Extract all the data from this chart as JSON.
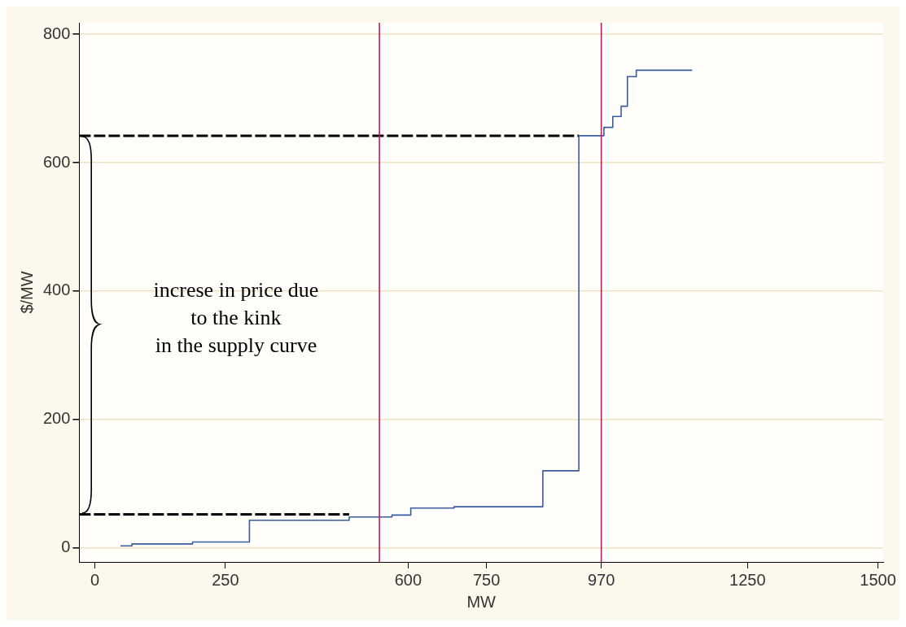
{
  "chart_data": {
    "type": "step",
    "xlabel": "MW",
    "ylabel": "$/MW",
    "xlim": [
      -30,
      1510
    ],
    "ylim": [
      -22,
      818
    ],
    "xticks": [
      0,
      250,
      600,
      750,
      970,
      1250,
      1500
    ],
    "yticks": [
      0,
      200,
      400,
      600,
      800
    ],
    "grid": "y",
    "legend": false,
    "series": [
      {
        "type": "step",
        "color": "#3a5ba0",
        "x": [
          49,
          71,
          187,
          296,
          487,
          569,
          605,
          688,
          858,
          927,
          975,
          992,
          1008,
          1020,
          1037,
          1144
        ],
        "values": [
          3,
          6,
          9,
          43,
          48,
          51,
          62,
          64,
          120,
          642,
          655,
          672,
          688,
          734,
          744,
          744
        ]
      },
      {
        "type": "line",
        "color": "#000000",
        "line_style": "dashed",
        "x": [
          -30,
          927
        ],
        "values": [
          642,
          642
        ]
      },
      {
        "type": "line",
        "color": "#000000",
        "line_style": "dashed",
        "x": [
          -30,
          487
        ],
        "values": [
          52,
          52
        ]
      }
    ],
    "ref_lines": [
      {
        "axis": "x",
        "value": 545,
        "color": "#d1145a"
      },
      {
        "axis": "x",
        "value": 970,
        "color": "#d1145a"
      }
    ],
    "annotations": [
      "increse in price due\nto the kink\nin the supply curve"
    ]
  }
}
